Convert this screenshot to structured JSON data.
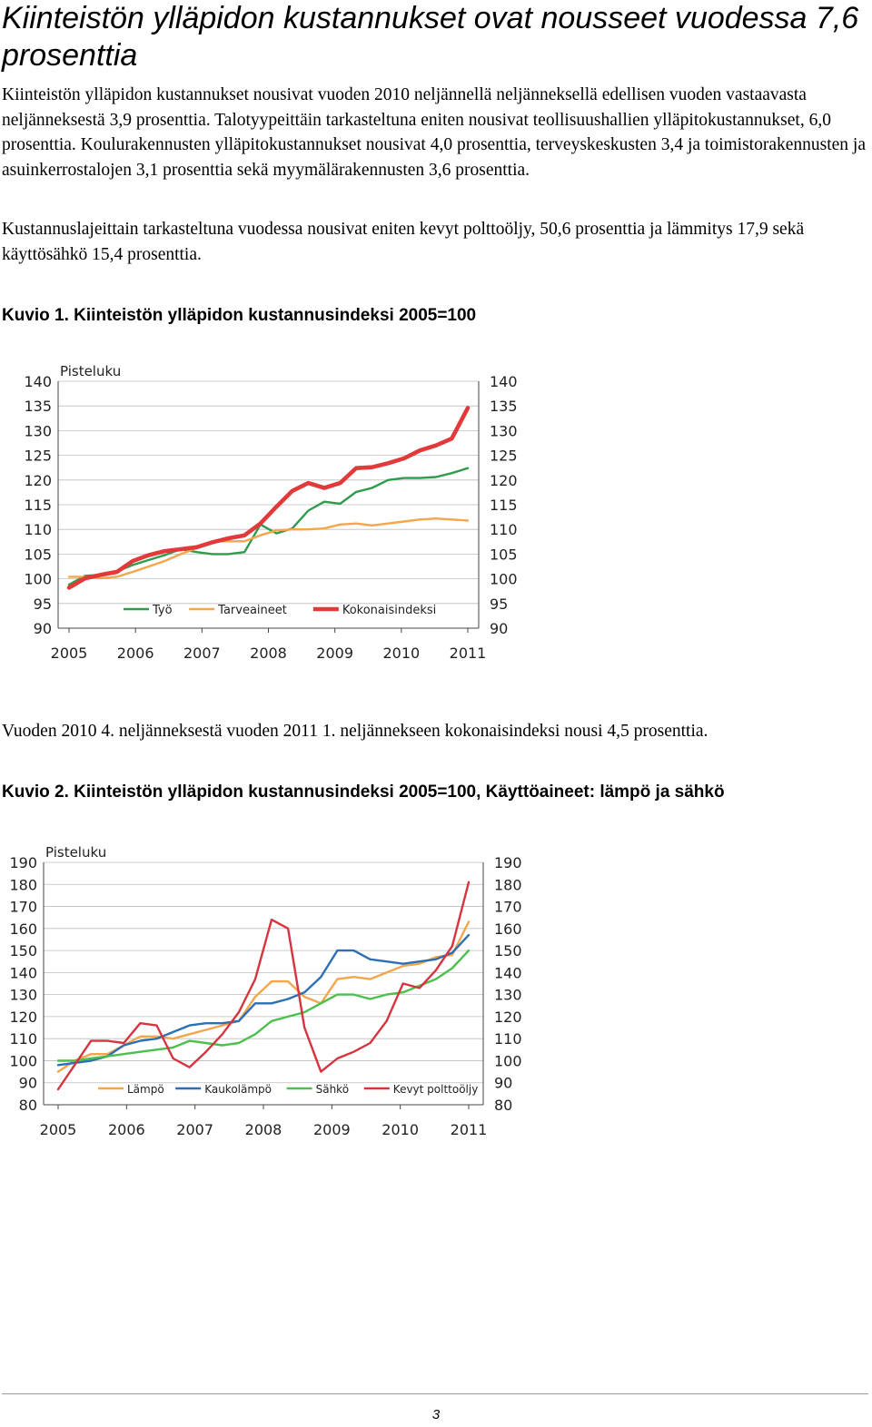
{
  "title": "Kiinteistön ylläpidon kustannukset ovat nousseet vuodessa 7,6 prosenttia",
  "paragraphs": {
    "p1": "Kiinteistön ylläpidon kustannukset nousivat vuoden 2010 neljännellä neljänneksellä edellisen vuoden vastaavasta neljänneksestä 3,9 prosenttia. Talotyypeittäin tarkasteltuna eniten nousivat teollisuushallien ylläpitokustannukset, 6,0 prosenttia. Koulurakennusten ylläpitokustannukset nousivat 4,0 prosenttia, terveyskeskusten 3,4 ja toimistorakennusten ja asuinkerrostalojen 3,1 prosenttia sekä myymälärakennusten 3,6 prosenttia.",
    "p2": "Kustannuslajeittain tarkasteltuna vuodessa nousivat eniten kevyt polttoöljy, 50,6 prosenttia ja lämmitys 17,9 sekä käyttösähkö 15,4 prosenttia.",
    "p3": "Vuoden 2010 4. neljänneksestä vuoden 2011 1. neljännekseen kokonaisindeksi nousi 4,5 prosenttia."
  },
  "captions": {
    "figure1": "Kuvio 1. Kiinteistön ylläpidon kustannusindeksi 2005=100",
    "figure2": "Kuvio 2. Kiinteistön ylläpidon kustannusindeksi 2005=100, Käyttöaineet: lämpö ja sähkö"
  },
  "page_number": "3",
  "chart_data": [
    {
      "type": "line",
      "ylabel": "Pisteluku",
      "ylim": [
        90,
        140
      ],
      "yticks": [
        90,
        95,
        100,
        105,
        110,
        115,
        120,
        125,
        130,
        135,
        140
      ],
      "xticks": [
        "2005",
        "2006",
        "2007",
        "2008",
        "2009",
        "2010",
        "2011"
      ],
      "x_start": 2005,
      "x_end": 2011,
      "grid": true,
      "legend_position": "bottom",
      "series": [
        {
          "name": "Työ",
          "color": "#2e9c4b",
          "values": [
            98.8,
            100.6,
            100.8,
            101.5,
            102.8,
            103.8,
            104.8,
            106.0,
            105.4,
            105.0,
            105.0,
            105.4,
            111.0,
            109.2,
            110.2,
            113.8,
            115.6,
            115.2,
            117.6,
            118.4,
            120.0,
            120.4,
            120.4,
            120.6,
            121.4,
            122.4
          ]
        },
        {
          "name": "Tarveaineet",
          "color": "#f5a54a",
          "values": [
            100.4,
            100.4,
            100.1,
            100.4,
            101.4,
            102.5,
            103.6,
            105.0,
            106.2,
            107.6,
            107.6,
            107.6,
            108.8,
            109.8,
            110.0,
            110.0,
            110.2,
            111.0,
            111.2,
            110.8,
            111.2,
            111.6,
            112.0,
            112.2,
            112.0,
            111.8
          ]
        },
        {
          "name": "Kokonaisindeksi",
          "color": "#e23a3a",
          "values": [
            98.2,
            100.1,
            100.8,
            101.4,
            103.6,
            104.8,
            105.6,
            106.0,
            106.4,
            107.4,
            108.2,
            108.8,
            111.2,
            114.6,
            117.8,
            119.4,
            118.4,
            119.4,
            122.4,
            122.6,
            123.4,
            124.4,
            126.0,
            127.0,
            128.4,
            134.6
          ]
        }
      ]
    },
    {
      "type": "line",
      "ylabel": "Pisteluku",
      "ylim": [
        80,
        190
      ],
      "yticks": [
        80,
        90,
        100,
        110,
        120,
        130,
        140,
        150,
        160,
        170,
        180,
        190
      ],
      "xticks": [
        "2005",
        "2006",
        "2007",
        "2008",
        "2009",
        "2010",
        "2011"
      ],
      "x_start": 2005,
      "x_end": 2011,
      "grid": true,
      "legend_position": "bottom",
      "series": [
        {
          "name": "Lämpö",
          "color": "#f5a54a",
          "values": [
            95,
            100,
            103,
            103,
            107,
            111,
            111,
            110,
            112,
            114,
            116,
            118,
            129,
            136,
            136,
            129,
            126,
            137,
            138,
            137,
            140,
            143,
            144,
            147,
            148,
            163
          ]
        },
        {
          "name": "Kaukolämpö",
          "color": "#2c6fb4",
          "values": [
            98,
            99,
            100,
            102,
            107,
            109,
            110,
            113,
            116,
            117,
            117,
            118,
            126,
            126,
            128,
            131,
            138,
            150,
            150,
            146,
            145,
            144,
            145,
            146,
            149,
            157
          ]
        },
        {
          "name": "Sähkö",
          "color": "#4cbf4c",
          "values": [
            100,
            100,
            101,
            102,
            103,
            104,
            105,
            106,
            109,
            108,
            107,
            108,
            112,
            118,
            120,
            122,
            126,
            130,
            130,
            128,
            130,
            131,
            134,
            137,
            142,
            150
          ]
        },
        {
          "name": "Kevyt polttoöljy",
          "color": "#d7343f",
          "values": [
            87,
            98,
            109,
            109,
            108,
            117,
            116,
            101,
            97,
            104,
            112,
            122,
            137,
            164,
            160,
            115,
            95,
            101,
            104,
            108,
            118,
            135,
            133,
            141,
            152,
            181
          ]
        }
      ]
    }
  ]
}
